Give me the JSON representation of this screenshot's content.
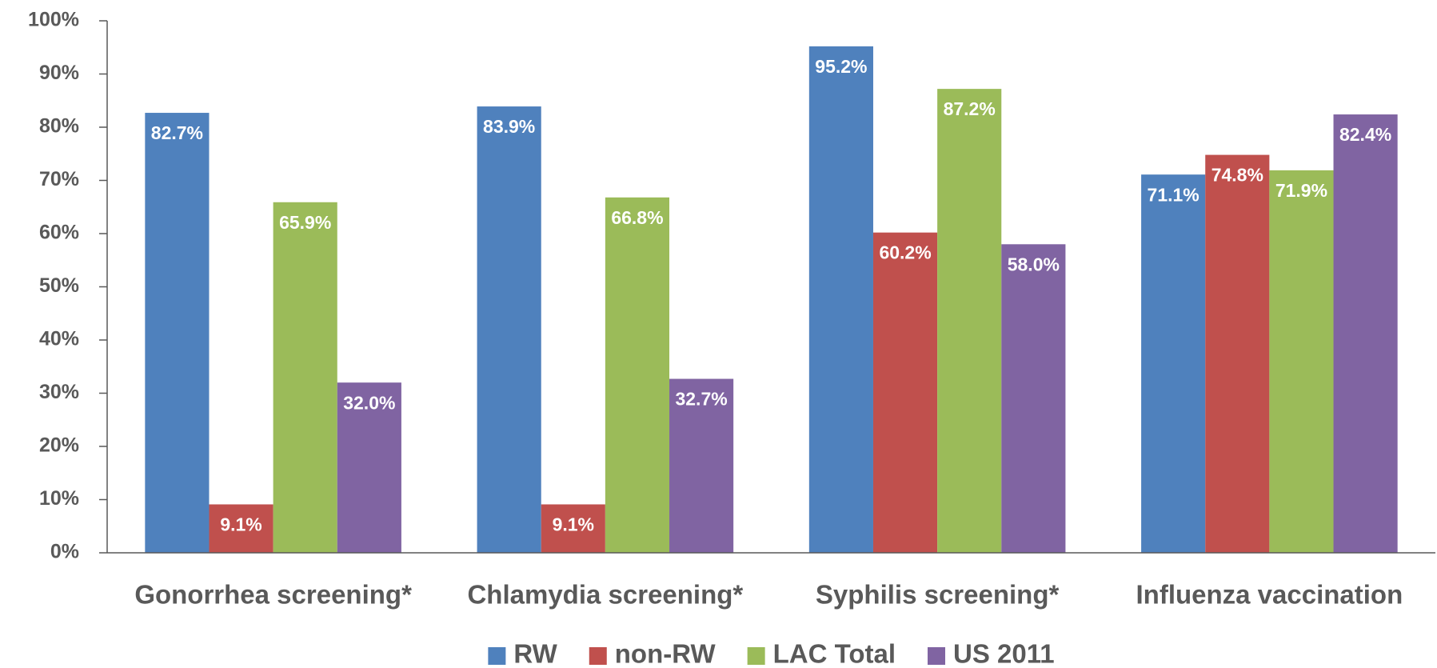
{
  "chart_data": {
    "type": "bar",
    "categories": [
      "Gonorrhea screening*",
      "Chlamydia screening*",
      "Syphilis screening*",
      "Influenza vaccination"
    ],
    "series": [
      {
        "name": "RW",
        "color": "#4f81bd",
        "values": [
          82.7,
          83.9,
          95.2,
          71.1
        ],
        "value_labels": [
          "82.7%",
          "83.9%",
          "95.2%",
          "71.1%"
        ]
      },
      {
        "name": "non-RW",
        "color": "#c0504d",
        "values": [
          9.1,
          9.1,
          60.2,
          74.8
        ],
        "value_labels": [
          "9.1%",
          "9.1%",
          "60.2%",
          "74.8%"
        ]
      },
      {
        "name": "LAC Total",
        "color": "#9bbb59",
        "values": [
          65.9,
          66.8,
          87.2,
          71.9
        ],
        "value_labels": [
          "65.9%",
          "66.8%",
          "87.2%",
          "71.9%"
        ]
      },
      {
        "name": "US 2011",
        "color": "#8064a2",
        "values": [
          32.0,
          32.7,
          58.0,
          82.4
        ],
        "value_labels": [
          "32.0%",
          "32.7%",
          "58.0%",
          "82.4%"
        ]
      }
    ],
    "ylim": [
      0,
      100
    ],
    "yticks": [
      {
        "value": 0,
        "label": "0%"
      },
      {
        "value": 10,
        "label": "10%"
      },
      {
        "value": 20,
        "label": "20%"
      },
      {
        "value": 30,
        "label": "30%"
      },
      {
        "value": 40,
        "label": "40%"
      },
      {
        "value": 50,
        "label": "50%"
      },
      {
        "value": 60,
        "label": "60%"
      },
      {
        "value": 70,
        "label": "70%"
      },
      {
        "value": 80,
        "label": "80%"
      },
      {
        "value": 90,
        "label": "90%"
      },
      {
        "value": 100,
        "label": "100%"
      }
    ],
    "grid": false,
    "legend": "bottom"
  }
}
